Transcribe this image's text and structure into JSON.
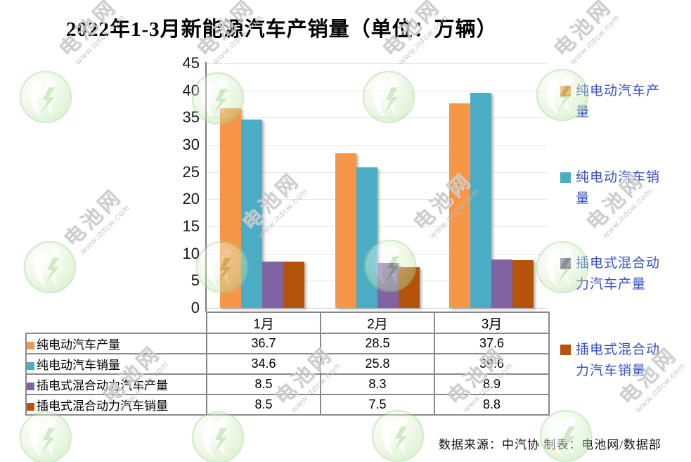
{
  "title": "2022年1-3月新能源汽车产销量（单位：万辆）",
  "source_note": "数据来源：中汽协 制表：电池网/数据部",
  "watermark": {
    "brand": "电池网",
    "url": "www.itdcw.com"
  },
  "colors": {
    "axis": "#7b7b7b",
    "grid": "#e4e4e4",
    "table_border": "#8a8a8a",
    "legend_text": "#3a50c8",
    "bev_production": "#F79646",
    "bev_sales": "#4BACC6",
    "phev_production": "#8064A2",
    "phev_sales": "#B45309"
  },
  "chart_data": {
    "type": "bar",
    "title": "2022年1-3月新能源汽车产销量（单位：万辆）",
    "unit": "万辆",
    "categories": [
      "1月",
      "2月",
      "3月"
    ],
    "series": [
      {
        "key": "bev-production",
        "name": "纯电动汽车产量",
        "color": "#F79646",
        "values": [
          36.7,
          28.5,
          37.6
        ]
      },
      {
        "key": "bev-sales",
        "name": "纯电动汽车销量",
        "color": "#4BACC6",
        "values": [
          34.6,
          25.8,
          39.6
        ]
      },
      {
        "key": "phev-production",
        "name": "插电式混合动力汽车产量",
        "color": "#8064A2",
        "values": [
          8.5,
          8.3,
          8.9
        ]
      },
      {
        "key": "phev-sales",
        "name": "插电式混合动力汽车销量",
        "color": "#B45309",
        "values": [
          8.5,
          7.5,
          8.8
        ]
      }
    ],
    "ylim": [
      0,
      45
    ],
    "yticks": [
      0,
      5,
      10,
      15,
      20,
      25,
      30,
      35,
      40,
      45
    ],
    "grid": true,
    "legend_position": "right",
    "data_table_shown": true
  }
}
